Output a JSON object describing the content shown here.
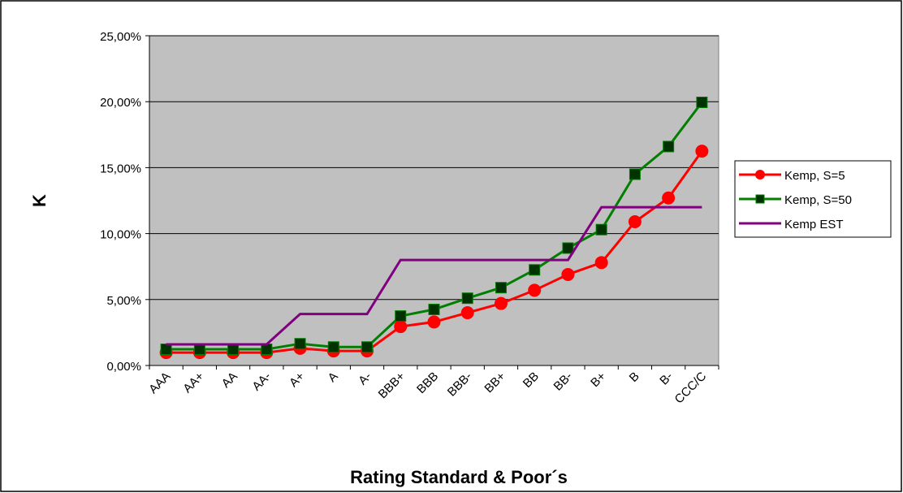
{
  "chart_data": {
    "type": "line",
    "x_label": "Rating Standard & Poor´s",
    "y_label": "K",
    "categories": [
      "AAA",
      "AA+",
      "AA",
      "AA-",
      "A+",
      "A",
      "A-",
      "BBB+",
      "BBB",
      "BBB-",
      "BB+",
      "BB",
      "BB-",
      "B+",
      "B",
      "B-",
      "CCC/C"
    ],
    "series": [
      {
        "name": "Kemp, S=5",
        "color": "#ff0000",
        "marker": "circle",
        "values": [
          0.98,
          0.98,
          0.98,
          0.98,
          1.3,
          1.1,
          1.1,
          2.95,
          3.3,
          4.0,
          4.7,
          5.7,
          6.9,
          7.8,
          10.9,
          12.7,
          16.25
        ]
      },
      {
        "name": "Kemp, S=50",
        "color": "#007f00",
        "marker": "square",
        "values": [
          1.23,
          1.23,
          1.23,
          1.23,
          1.65,
          1.4,
          1.4,
          3.75,
          4.25,
          5.1,
          5.9,
          7.25,
          8.9,
          10.3,
          14.5,
          16.6,
          19.95
        ]
      },
      {
        "name": "Kemp EST",
        "color": "#800080",
        "marker": "none",
        "values": [
          1.6,
          1.6,
          1.6,
          1.6,
          3.9,
          3.9,
          3.9,
          8.0,
          8.0,
          8.0,
          8.0,
          8.0,
          8.0,
          12.0,
          12.0,
          12.0,
          12.0
        ]
      }
    ],
    "ylim": [
      0,
      25
    ],
    "yticks": [
      {
        "value": 0,
        "label": "0,00%"
      },
      {
        "value": 5,
        "label": "5,00%"
      },
      {
        "value": 10,
        "label": "10,00%"
      },
      {
        "value": 15,
        "label": "15,00%"
      },
      {
        "value": 20,
        "label": "20,00%"
      },
      {
        "value": 25,
        "label": "25,00%"
      }
    ],
    "grid": true,
    "legend": "right"
  }
}
